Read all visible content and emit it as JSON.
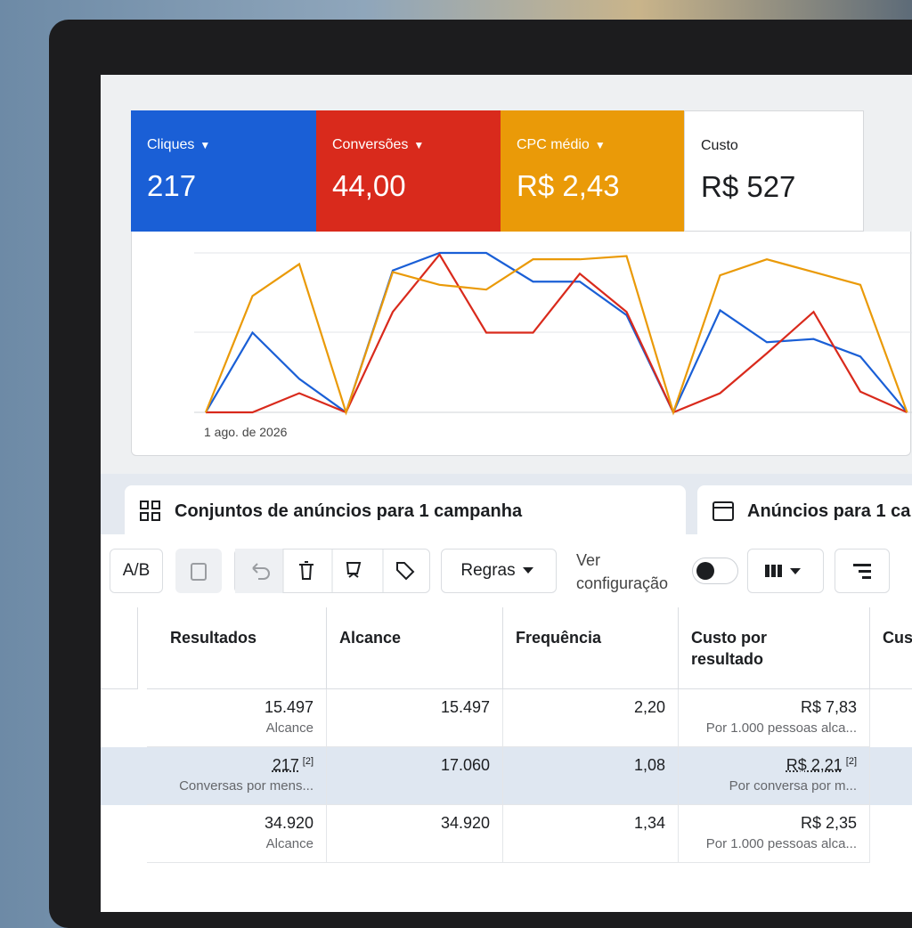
{
  "cards": [
    {
      "label": "Cliques",
      "value": "217",
      "color": "#1a5fd6"
    },
    {
      "label": "Conversões",
      "value": "44,00",
      "color": "#d92a1c"
    },
    {
      "label": "CPC médio",
      "value": "R$ 2,43",
      "color": "#ea9a08"
    },
    {
      "label": "Custo",
      "value": "R$ 527"
    }
  ],
  "chart_data": {
    "type": "line",
    "categories": [
      "1 ago. de 2026",
      null,
      null,
      null,
      null,
      null,
      null,
      null,
      null,
      null,
      null,
      null,
      null,
      null,
      null,
      null
    ],
    "ylim": [
      0,
      100
    ],
    "series": [
      {
        "color": "#1a5fd6",
        "values": [
          0,
          50,
          21,
          0,
          89,
          100,
          100,
          82,
          82,
          61,
          0,
          64,
          44,
          46,
          35,
          0
        ]
      },
      {
        "color": "#d92a1c",
        "values": [
          0,
          0,
          12,
          0,
          63,
          99,
          50,
          50,
          87,
          63,
          0,
          12,
          37,
          63,
          13,
          0
        ]
      },
      {
        "color": "#ea9a08",
        "values": [
          0,
          73,
          93,
          0,
          88,
          80,
          77,
          96,
          96,
          98,
          0,
          86,
          96,
          88,
          80,
          0
        ]
      }
    ]
  },
  "tabs": [
    "Conjuntos de anúncios para 1 campanha",
    "Anúncios para 1 ca"
  ],
  "toolbar": {
    "ab": "A/B",
    "rules": "Regras",
    "view": "Ver configuração"
  },
  "table": {
    "headers": [
      "Resultados",
      "Alcance",
      "Frequência",
      "Custo por resultado",
      "Cus"
    ],
    "rows": [
      [
        {
          "main": "15.497",
          "sub": "Alcance"
        },
        {
          "main": "15.497"
        },
        {
          "main": "2,20"
        },
        {
          "main": "R$ 7,83",
          "sub": "Por 1.000 pessoas alca..."
        }
      ],
      [
        {
          "main": "217",
          "note": "[2]",
          "sub": "Conversas por mens..."
        },
        {
          "main": "17.060"
        },
        {
          "main": "1,08"
        },
        {
          "main": "R$ 2,21",
          "note": "[2]",
          "sub": "Por conversa por m..."
        }
      ],
      [
        {
          "main": "34.920",
          "sub": "Alcance"
        },
        {
          "main": "34.920"
        },
        {
          "main": "1,34"
        },
        {
          "main": "R$ 2,35",
          "sub": "Por 1.000 pessoas alca..."
        }
      ]
    ]
  }
}
